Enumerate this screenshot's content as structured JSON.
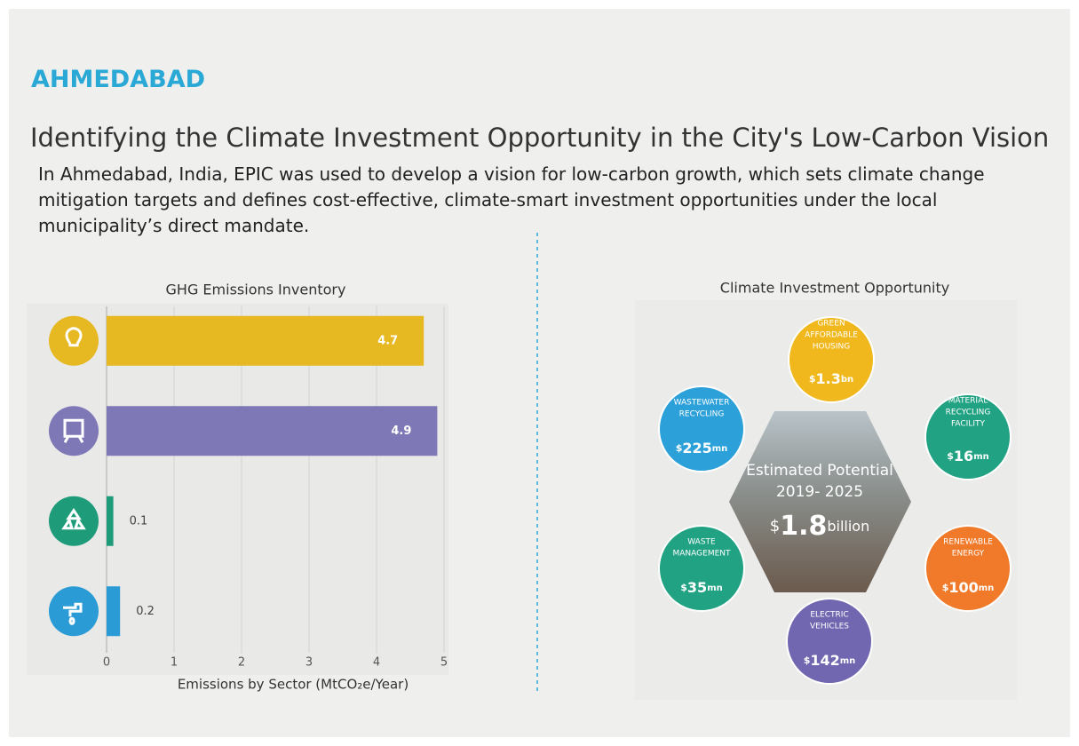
{
  "city": "AHMEDABAD",
  "title": "Identifying the Climate Investment Opportunity in the City's Low-Carbon Vision",
  "description": "In Ahmedabad, India, EPIC was used to develop a vision for low-carbon growth, which sets climate change mitigation targets and defines cost-effective, climate-smart investment opportunities under the local municipality’s direct mandate.",
  "chart_data": {
    "type": "bar",
    "orientation": "horizontal",
    "title": "GHG Emissions Inventory",
    "x_label": "Emissions by Sector  (MtCO₂e/Year)",
    "categories": [
      null,
      null,
      null,
      null
    ],
    "values": [
      4.7,
      4.9,
      0.1,
      0.2
    ],
    "colors": [
      "#e6b822",
      "#7f78b6",
      "#1e9b79",
      "#2b9bd6"
    ],
    "xlim": [
      0,
      5
    ],
    "xticks": [
      0,
      1,
      2,
      3,
      4,
      5
    ],
    "grid": true
  },
  "investment": {
    "title": "Climate Investment Opportunity",
    "center": {
      "line1": "Estimated Potential",
      "line2": "2019- 2025",
      "currency": "$",
      "amount": "1.8",
      "unit": "billion"
    },
    "nodes": [
      {
        "label": [
          "GREEN",
          "AFFORDABLE",
          "HOUSING"
        ],
        "currency": "$",
        "amount": "1.3",
        "unit": "bn",
        "color": "#f0b81c"
      },
      {
        "label": [
          "MATERIAL",
          "RECYCLING",
          "FACILITY"
        ],
        "currency": "$",
        "amount": "16",
        "unit": "mn",
        "color": "#21a283"
      },
      {
        "label": [
          "RENEWABLE",
          "ENERGY"
        ],
        "currency": "$",
        "amount": "100",
        "unit": "mn",
        "color": "#f07a2a"
      },
      {
        "label": [
          "ELECTRIC",
          "VEHICLES"
        ],
        "currency": "$",
        "amount": "142",
        "unit": "mn",
        "color": "#7067b0"
      },
      {
        "label": [
          "WASTE",
          "MANAGEMENT"
        ],
        "currency": "$",
        "amount": "35",
        "unit": "mn",
        "color": "#21a283"
      },
      {
        "label": [
          "WASTEWATER",
          "RECYCLING"
        ],
        "currency": "$",
        "amount": "225",
        "unit": "mn",
        "color": "#2ca0d9"
      }
    ]
  }
}
